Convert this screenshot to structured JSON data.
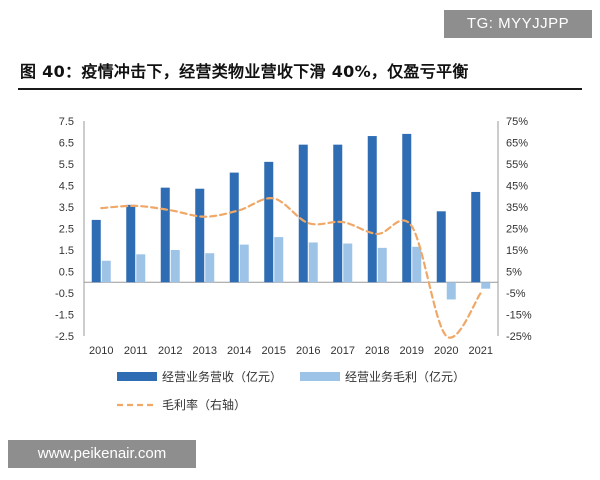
{
  "badge": "TG: MYYJJPP",
  "title": "图 40：疫情冲击下，经营类物业营收下滑 40%，仅盈亏平衡",
  "watermark": "www.peikenair.com",
  "colors": {
    "revenue": "#2e6db4",
    "gross_profit": "#9dc3e6",
    "margin": "#f0a868"
  },
  "chart_data": {
    "type": "bar",
    "categories": [
      "2010",
      "2011",
      "2012",
      "2013",
      "2014",
      "2015",
      "2016",
      "2017",
      "2018",
      "2019",
      "2020",
      "2021"
    ],
    "series": [
      {
        "name": "经营业务营收（亿元）",
        "type": "bar",
        "axis": "left",
        "values": [
          2.9,
          3.6,
          4.4,
          4.35,
          5.1,
          5.6,
          6.4,
          6.4,
          6.8,
          6.9,
          3.3,
          4.2
        ]
      },
      {
        "name": "经营业务毛利（亿元）",
        "type": "bar",
        "axis": "left",
        "values": [
          1.0,
          1.3,
          1.5,
          1.35,
          1.75,
          2.1,
          1.85,
          1.8,
          1.6,
          1.65,
          -0.8,
          -0.3
        ]
      },
      {
        "name": "毛利率（右轴）",
        "type": "line",
        "style": "dashed",
        "axis": "right",
        "values": [
          34.5,
          35.5,
          33.5,
          30.5,
          33.5,
          39,
          27.5,
          28,
          22.5,
          26,
          -25,
          -5
        ]
      }
    ],
    "y_left": {
      "min": -2.5,
      "max": 7.5,
      "ticks": [
        "7.5",
        "6.5",
        "5.5",
        "4.5",
        "3.5",
        "2.5",
        "1.5",
        "0.5",
        "-0.5",
        "-1.5",
        "-2.5"
      ]
    },
    "y_right": {
      "min": -25,
      "max": 75,
      "ticks": [
        "75%",
        "65%",
        "55%",
        "45%",
        "35%",
        "25%",
        "15%",
        "5%",
        "-5%",
        "-15%",
        "-25%"
      ]
    },
    "grid": false,
    "legend": "bottom"
  }
}
